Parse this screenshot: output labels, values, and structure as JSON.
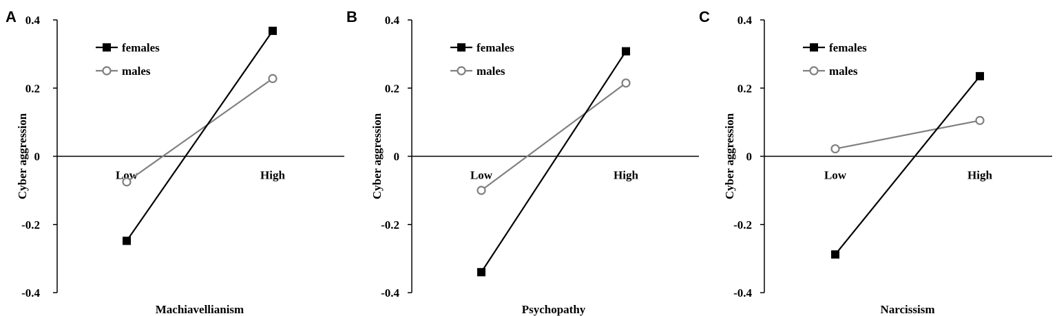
{
  "chart_data": [
    {
      "type": "line",
      "panel": "A",
      "categories": [
        "Low",
        "High"
      ],
      "xlabel": "Machiavellianism",
      "ylabel": "Cyber aggression",
      "ylim": [
        -0.4,
        0.4
      ],
      "yticks": [
        "0.4",
        "0.2",
        "0",
        "-0.2",
        "-0.4"
      ],
      "legend_position": "top-left",
      "grid": false,
      "series": [
        {
          "name": "females",
          "values": [
            -0.248,
            0.368
          ],
          "color": "#000000",
          "marker": "square"
        },
        {
          "name": "males",
          "values": [
            -0.075,
            0.228
          ],
          "color": "#808080",
          "marker": "circle"
        }
      ]
    },
    {
      "type": "line",
      "panel": "B",
      "categories": [
        "Low",
        "High"
      ],
      "xlabel": "Psychopathy",
      "ylabel": "Cyber aggression",
      "ylim": [
        -0.4,
        0.4
      ],
      "yticks": [
        "0.4",
        "0.2",
        "0",
        "-0.2",
        "-0.4"
      ],
      "legend_position": "top-left",
      "grid": false,
      "series": [
        {
          "name": "females",
          "values": [
            -0.34,
            0.308
          ],
          "color": "#000000",
          "marker": "square"
        },
        {
          "name": "males",
          "values": [
            -0.1,
            0.215
          ],
          "color": "#808080",
          "marker": "circle"
        }
      ]
    },
    {
      "type": "line",
      "panel": "C",
      "categories": [
        "Low",
        "High"
      ],
      "xlabel": "Narcissism",
      "ylabel": "Cyber aggression",
      "ylim": [
        -0.4,
        0.4
      ],
      "yticks": [
        "0.4",
        "0.2",
        "0",
        "-0.2",
        "-0.4"
      ],
      "legend_position": "top-left",
      "grid": false,
      "series": [
        {
          "name": "females",
          "values": [
            -0.288,
            0.235
          ],
          "color": "#000000",
          "marker": "square"
        },
        {
          "name": "males",
          "values": [
            0.022,
            0.105
          ],
          "color": "#808080",
          "marker": "circle"
        }
      ]
    }
  ]
}
